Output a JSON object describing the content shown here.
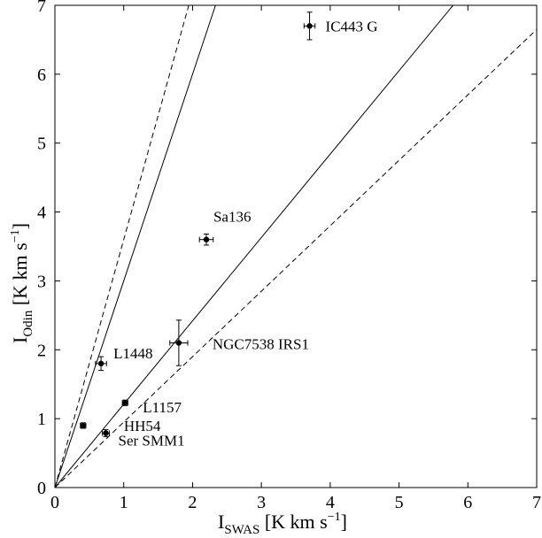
{
  "chart_data": {
    "type": "scatter",
    "title": "",
    "xlabel": {
      "main": "I",
      "sub": "SWAS",
      "unit_pre": " [K km s",
      "unit_sup": "−1",
      "unit_post": "]"
    },
    "ylabel": {
      "main": "I",
      "sub": "Odin",
      "unit_pre": " [K km s",
      "unit_sup": "−1",
      "unit_post": "]"
    },
    "xlim": [
      0,
      7
    ],
    "ylim": [
      0,
      7
    ],
    "xticks": [
      0,
      1,
      2,
      3,
      4,
      5,
      6,
      7
    ],
    "yticks": [
      0,
      1,
      2,
      3,
      4,
      5,
      6,
      7
    ],
    "grid": false,
    "points": [
      {
        "label": "IC443 G",
        "x": 3.7,
        "y": 6.7,
        "xerr": 0.08,
        "yerr": 0.2
      },
      {
        "label": "Sa136",
        "x": 2.2,
        "y": 3.6,
        "xerr": 0.1,
        "yerr": 0.08
      },
      {
        "label": "NGC7538 IRS1",
        "x": 1.8,
        "y": 2.1,
        "xerr": 0.13,
        "yerr": 0.33
      },
      {
        "label": "L1448",
        "x": 0.67,
        "y": 1.8,
        "xerr": 0.08,
        "yerr": 0.1
      },
      {
        "label": "L1157",
        "x": 1.02,
        "y": 1.23,
        "xerr": 0.04,
        "yerr": 0.04
      },
      {
        "label": "HH54",
        "x": 0.41,
        "y": 0.9,
        "xerr": 0.04,
        "yerr": 0.04
      },
      {
        "label": "Ser SMM1",
        "x": 0.74,
        "y": 0.79,
        "xerr": 0.05,
        "yerr": 0.05
      }
    ],
    "reference_lines": [
      {
        "slope": 3.6,
        "style": "dashed"
      },
      {
        "slope": 3.0,
        "style": "solid"
      },
      {
        "slope": 1.21,
        "style": "solid"
      },
      {
        "slope": 0.95,
        "style": "dashed"
      }
    ]
  }
}
